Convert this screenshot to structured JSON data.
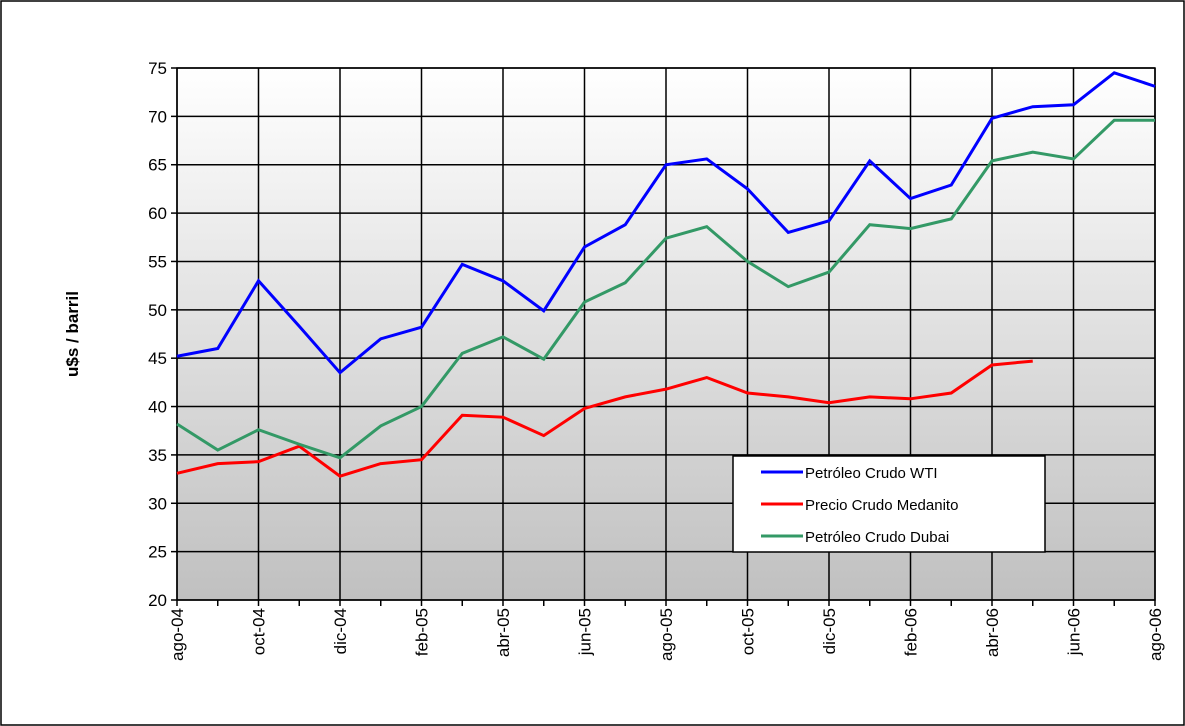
{
  "chart_data": {
    "type": "line",
    "y_label": "u$s / barril",
    "categories": [
      "ago-04",
      null,
      "oct-04",
      null,
      "dic-04",
      null,
      "feb-05",
      null,
      "abr-05",
      null,
      "jun-05",
      null,
      "ago-05",
      null,
      "oct-05",
      null,
      "dic-05",
      null,
      "feb-06",
      null,
      "abr-06",
      null,
      "jun-06",
      null,
      "ago-06"
    ],
    "series": [
      {
        "name": "Petróleo Crudo WTI",
        "color": "#0000ff",
        "values": [
          45.2,
          46.0,
          53.0,
          48.3,
          43.5,
          47.0,
          48.2,
          54.7,
          53.0,
          49.9,
          56.5,
          58.8,
          65.0,
          65.6,
          62.5,
          58.0,
          59.2,
          65.4,
          61.5,
          62.9,
          69.8,
          71.0,
          71.2,
          74.5,
          73.1
        ]
      },
      {
        "name": "Precio Crudo Medanito",
        "color": "#ff0000",
        "values": [
          33.1,
          34.1,
          34.3,
          35.9,
          32.8,
          34.1,
          34.5,
          39.1,
          38.9,
          37.0,
          39.8,
          41.0,
          41.8,
          43.0,
          41.4,
          41.0,
          40.4,
          41.0,
          40.8,
          41.4,
          44.3,
          44.7,
          null,
          null,
          null
        ]
      },
      {
        "name": "Petróleo Crudo Dubai",
        "color": "#339966",
        "values": [
          38.2,
          35.5,
          37.6,
          36.1,
          34.7,
          38.0,
          40.0,
          45.5,
          47.2,
          44.9,
          50.8,
          52.8,
          57.4,
          58.6,
          55.0,
          52.4,
          53.9,
          58.8,
          58.4,
          59.4,
          65.4,
          66.3,
          65.6,
          69.6,
          69.6
        ]
      }
    ],
    "ylim": [
      20,
      75
    ],
    "yticks": [
      20,
      25,
      30,
      35,
      40,
      45,
      50,
      55,
      60,
      65,
      70,
      75
    ],
    "grid": true
  }
}
